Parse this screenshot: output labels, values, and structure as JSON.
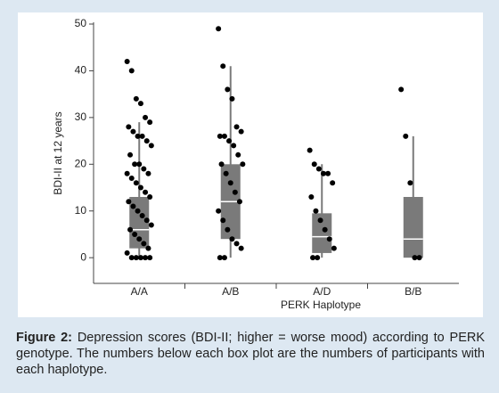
{
  "chart_data": {
    "type": "box",
    "ylabel": "BDI-II at 12 years",
    "xlabel": "PERK Haplotype",
    "categories": [
      "A/A",
      "A/B",
      "A/D",
      "B/B"
    ],
    "min": [
      0,
      0,
      0,
      0
    ],
    "q1": [
      2,
      4,
      1,
      0
    ],
    "median": [
      6,
      12,
      4.5,
      4
    ],
    "q3": [
      13,
      20,
      9.5,
      13
    ],
    "max": [
      29,
      41,
      20,
      26
    ],
    "points": [
      [
        42,
        40,
        34,
        33,
        30,
        29,
        28,
        27,
        26,
        26,
        25,
        24,
        22,
        20,
        20,
        19,
        18,
        18,
        17,
        16,
        15,
        14,
        13,
        12,
        11,
        10,
        9,
        8,
        7,
        6,
        5,
        4,
        3,
        2,
        1,
        0,
        0,
        0,
        0,
        0
      ],
      [
        49,
        41,
        36,
        34,
        28,
        27,
        26,
        26,
        25,
        24,
        22,
        20,
        20,
        18,
        16,
        14,
        12,
        10,
        8,
        6,
        4,
        3,
        2,
        0,
        0
      ],
      [
        23,
        20,
        19,
        18,
        18,
        16,
        13,
        10,
        8,
        6,
        4,
        2,
        0,
        0
      ],
      [
        36,
        26,
        16,
        0,
        0
      ]
    ],
    "box_color": "#7a7a7a",
    "point_color": "#000000",
    "ylim": [
      -5.5,
      50
    ],
    "yticks": [
      0,
      10,
      20,
      30,
      40,
      50
    ]
  },
  "caption": {
    "label": "Figure 2:",
    "text": "Depression scores (BDI-II; higher = worse mood) according to PERK genotype. The numbers below each box plot are the numbers of participants with each haplotype."
  }
}
